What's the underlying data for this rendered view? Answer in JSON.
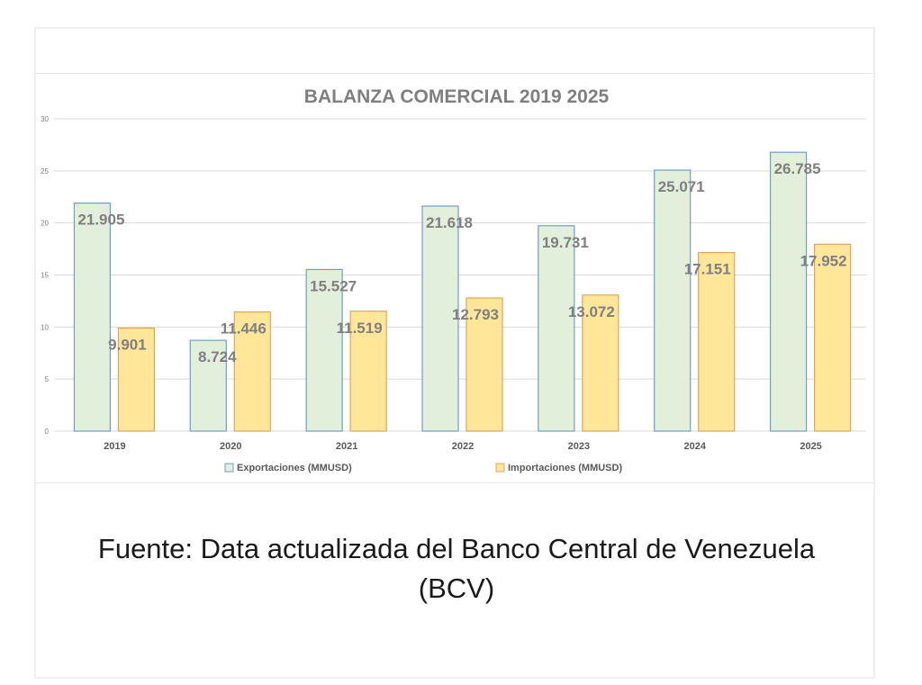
{
  "caption": {
    "line1": "Fuente: Data actualizada del Banco Central de Venezuela",
    "line2": "(BCV)"
  },
  "colors": {
    "exports_fill": "#e2efda",
    "exports_stroke": "#6f9ec7",
    "imports_fill": "#ffe699",
    "imports_stroke": "#e0a55a",
    "label_text": "#7f7f7f",
    "title_text": "#7f7f7f",
    "grid": "#d9d9d9"
  },
  "chart_data": {
    "type": "bar",
    "title": "BALANZA COMERCIAL 2019 2025",
    "xlabel": "",
    "ylabel": "",
    "categories": [
      "2019",
      "2020",
      "2021",
      "2022",
      "2023",
      "2024",
      "2025"
    ],
    "series": [
      {
        "name": "Exportaciones (MMUSD)",
        "values": [
          21.905,
          8.724,
          15.527,
          21.618,
          19.731,
          25.071,
          26.785
        ],
        "labels": [
          "21.905",
          "8.724",
          "15.527",
          "21.618",
          "19.731",
          "25.071",
          "26.785"
        ]
      },
      {
        "name": "Importaciones (MMUSD)",
        "values": [
          9.901,
          11.446,
          11.519,
          12.793,
          13.072,
          17.151,
          17.952
        ],
        "labels": [
          "9.901",
          "11.446",
          "11.519",
          "12.793",
          "13.072",
          "17.151",
          "17.952"
        ]
      }
    ],
    "ylim": [
      0,
      30
    ],
    "yticks": [
      "0",
      "5",
      "10",
      "15",
      "20",
      "25",
      "30"
    ],
    "grid": true,
    "legend": "bottom"
  }
}
